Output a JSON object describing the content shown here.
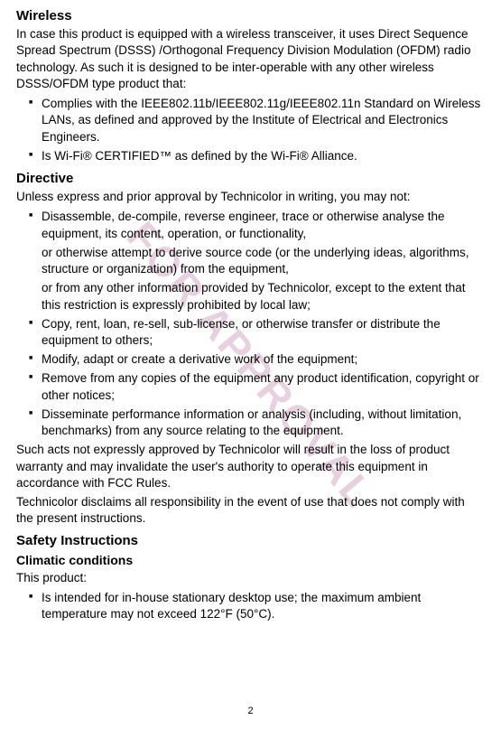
{
  "watermark": "FOR APPROVAL",
  "pageNumber": "2",
  "wireless": {
    "heading": "Wireless",
    "intro": "In case this product is equipped with a wireless transceiver, it uses Direct Sequence Spread Spectrum (DSSS) /Orthogonal Frequency Division Modulation (OFDM) radio technology. As such it is designed to be inter-operable with any other wireless DSSS/OFDM type product that:",
    "items": [
      "Complies with the IEEE802.11b/IEEE802.11g/IEEE802.11n Standard on Wireless LANs, as defined and approved by the Institute of Electrical and Electronics Engineers.",
      "Is Wi-Fi® CERTIFIED™ as defined by the Wi-Fi® Alliance."
    ]
  },
  "directive": {
    "heading": "Directive",
    "intro": "Unless express and prior approval by Technicolor in writing, you may not:",
    "items": [
      {
        "main": "Disassemble, de-compile, reverse engineer, trace or otherwise analyse the equipment, its content, operation, or functionality,",
        "sub1": "or otherwise attempt to derive source code (or the underlying ideas, algorithms, structure or organization) from the equipment,",
        "sub2": "or from any other information provided by Technicolor, except to the extent that this restriction is expressly prohibited by local law;"
      },
      {
        "main": "Copy, rent, loan, re-sell, sub-license, or otherwise transfer or distribute the equipment to others;"
      },
      {
        "main": "Modify, adapt or create a derivative work of the equipment;"
      },
      {
        "main": "Remove from any copies of the equipment any product identification, copyright or other notices;"
      },
      {
        "main": "Disseminate performance information or analysis (including, without limitation, benchmarks) from any source relating to the equipment."
      }
    ],
    "conclusion1": "Such acts not expressly approved by Technicolor will result in the loss of product warranty and may invalidate the user's authority to operate this equipment in accordance with FCC Rules.",
    "conclusion2": "Technicolor disclaims all responsibility in the event of use that does not comply with the present instructions."
  },
  "safety": {
    "heading": "Safety Instructions",
    "subheading": "Climatic conditions",
    "intro": "This product:",
    "items": [
      "Is intended for in-house stationary desktop use; the maximum ambient temperature may not exceed 122°F (50°C)."
    ]
  }
}
